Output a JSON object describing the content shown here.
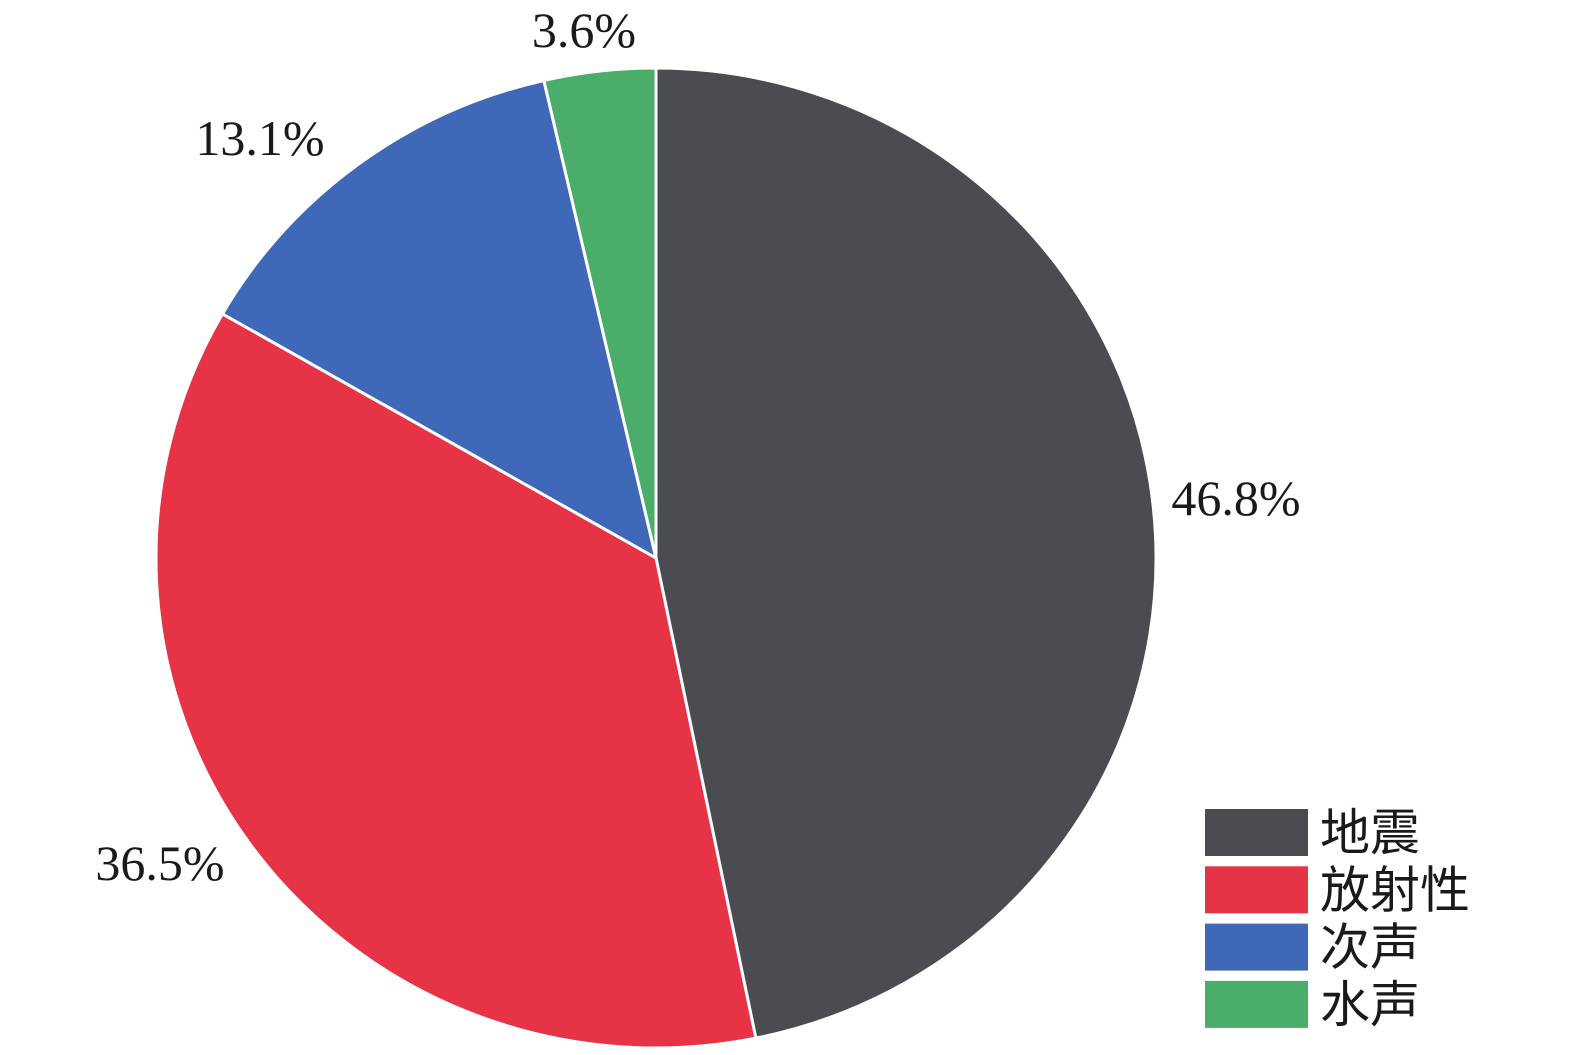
{
  "chart_data": {
    "type": "pie",
    "categories": [
      "地震",
      "放射性",
      "次声",
      "水声"
    ],
    "values": [
      46.8,
      36.5,
      13.1,
      3.6
    ],
    "data_labels": [
      "46.8%",
      "36.5%",
      "13.1%",
      "3.6%"
    ],
    "colors": [
      "#4b4c52",
      "#e63346",
      "#3f69b8",
      "#4aad6a"
    ],
    "legend_position": "bottom-right"
  }
}
